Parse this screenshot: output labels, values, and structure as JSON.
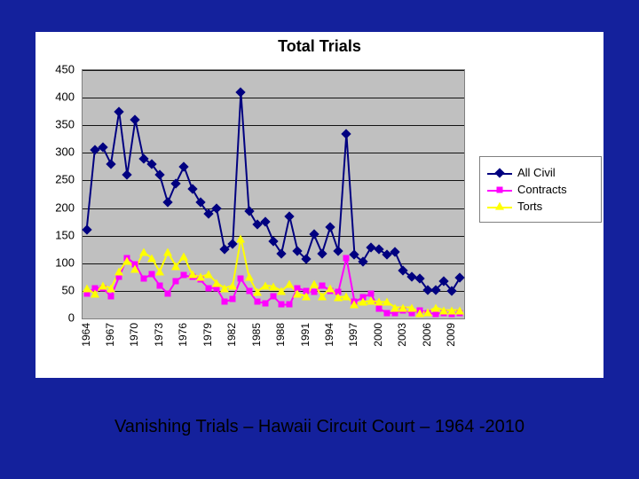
{
  "slide": {
    "background_color": "#14219c",
    "caption": "Vanishing Trials – Hawaii Circuit Court – 1964 -2010",
    "caption_fontsize": 20,
    "caption_color": "#000000"
  },
  "chart": {
    "type": "line",
    "title": "Total Trials",
    "title_fontsize": 18,
    "title_fontweight": "bold",
    "panel_background": "#ffffff",
    "plot_background": "#c0c0c0",
    "grid_color": "#000000",
    "axis_color": "#808080",
    "font_family": "Arial",
    "ylim": [
      0,
      450
    ],
    "ytick_step": 50,
    "yticks": [
      0,
      50,
      100,
      150,
      200,
      250,
      300,
      350,
      400,
      450
    ],
    "x_categories": [
      "1964",
      "1965",
      "1966",
      "1967",
      "1968",
      "1969",
      "1970",
      "1971",
      "1972",
      "1973",
      "1974",
      "1975",
      "1976",
      "1977",
      "1978",
      "1979",
      "1980",
      "1981",
      "1982",
      "1983",
      "1984",
      "1985",
      "1986",
      "1987",
      "1988",
      "1989",
      "1990",
      "1991",
      "1992",
      "1993",
      "1994",
      "1995",
      "1996",
      "1997",
      "1998",
      "1999",
      "2000",
      "2001",
      "2002",
      "2003",
      "2004",
      "2005",
      "2006",
      "2007",
      "2008",
      "2009",
      "2010"
    ],
    "x_tick_every": 3,
    "x_tick_labels": [
      "1964",
      "1967",
      "1970",
      "1973",
      "1976",
      "1979",
      "1982",
      "1985",
      "1988",
      "1991",
      "1994",
      "1997",
      "2000",
      "2003",
      "2006",
      "2009"
    ],
    "x_label_fontsize": 12,
    "y_label_fontsize": 13,
    "line_width": 2,
    "marker_size": 8,
    "series": [
      {
        "name": "All Civil",
        "color": "#000080",
        "marker": "diamond",
        "values": [
          160,
          305,
          310,
          280,
          375,
          260,
          360,
          290,
          280,
          260,
          210,
          245,
          275,
          235,
          210,
          190,
          200,
          125,
          135,
          410,
          195,
          170,
          175,
          140,
          118,
          185,
          122,
          108,
          152,
          118,
          165,
          122,
          335,
          115,
          103,
          128,
          125,
          115,
          120,
          87,
          75,
          72,
          52,
          52,
          67,
          50,
          74
        ]
      },
      {
        "name": "Contracts",
        "color": "#ff00ff",
        "marker": "square",
        "values": [
          45,
          55,
          55,
          40,
          75,
          110,
          98,
          72,
          80,
          60,
          45,
          68,
          78,
          75,
          70,
          55,
          55,
          30,
          35,
          72,
          50,
          30,
          28,
          40,
          25,
          25,
          55,
          50,
          48,
          60,
          50,
          48,
          110,
          30,
          38,
          45,
          18,
          10,
          10,
          15,
          10,
          15,
          10,
          8,
          10,
          8,
          10
        ]
      },
      {
        "name": "Torts",
        "color": "#ffff00",
        "marker": "triangle",
        "values": [
          55,
          45,
          60,
          55,
          85,
          105,
          90,
          120,
          110,
          85,
          120,
          95,
          112,
          80,
          75,
          80,
          65,
          55,
          60,
          145,
          75,
          48,
          60,
          58,
          50,
          62,
          45,
          40,
          62,
          40,
          55,
          38,
          40,
          25,
          30,
          32,
          30,
          30,
          20,
          20,
          20,
          10,
          12,
          20,
          15,
          15,
          15
        ]
      }
    ],
    "legend": {
      "position": "right",
      "background": "#ffffff",
      "border_color": "#808080",
      "fontsize": 13
    }
  }
}
